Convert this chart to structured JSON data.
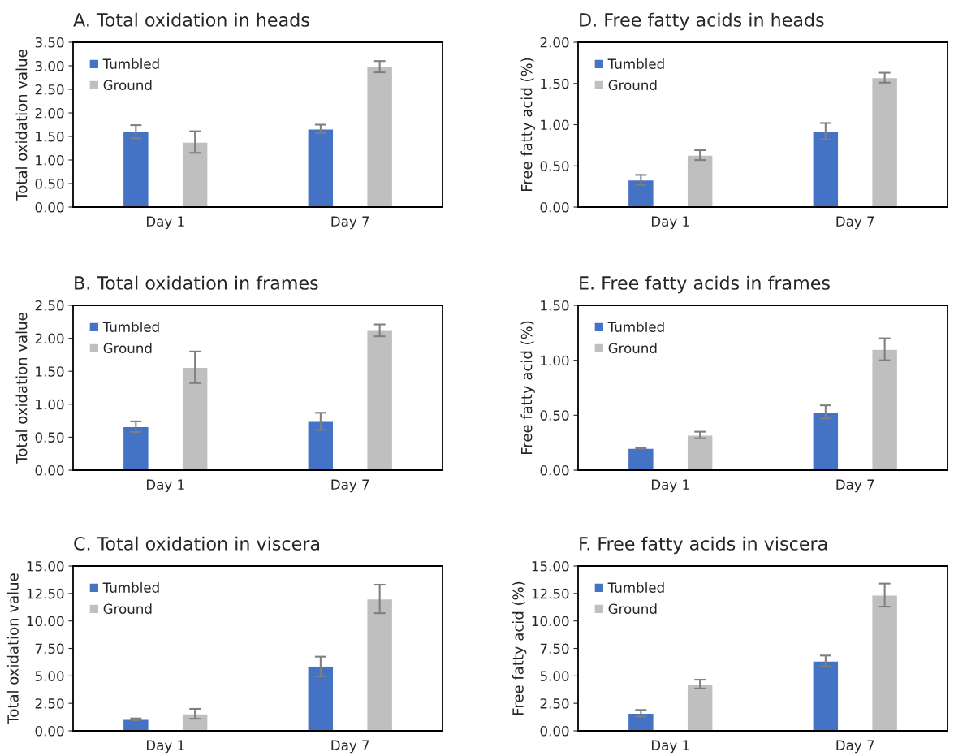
{
  "chart_data": [
    {
      "type": "bar",
      "title": "A. Total oxidation in heads",
      "ylabel": "Total oxidation value",
      "categories": [
        "Day 1",
        "Day 7"
      ],
      "legend": "top left",
      "ylim": [
        0,
        3.5
      ],
      "yticks": [
        {
          "value": 0,
          "label": "0.00"
        },
        {
          "value": 0.5,
          "label": "0.50"
        },
        {
          "value": 1,
          "label": "1.00"
        },
        {
          "value": 1.5,
          "label": "1.50"
        },
        {
          "value": 2,
          "label": "2.00"
        },
        {
          "value": 2.5,
          "label": "2.50"
        },
        {
          "value": 3,
          "label": "3.00"
        },
        {
          "value": 3.5,
          "label": "3.50"
        }
      ],
      "series": [
        {
          "name": "Tumbled",
          "color": "#4472c4",
          "values": [
            1.6,
            1.66
          ],
          "errors": [
            0.14,
            0.09
          ]
        },
        {
          "name": "Ground",
          "color": "#bfbfbf",
          "values": [
            1.38,
            2.98
          ],
          "errors": [
            0.23,
            0.12
          ]
        }
      ]
    },
    {
      "type": "bar",
      "title": "B. Total oxidation in frames",
      "ylabel": "Total oxidation value",
      "categories": [
        "Day 1",
        "Day 7"
      ],
      "legend": "top left",
      "ylim": [
        0,
        2.5
      ],
      "yticks": [
        {
          "value": 0,
          "label": "0.00"
        },
        {
          "value": 0.5,
          "label": "0.50"
        },
        {
          "value": 1,
          "label": "1.00"
        },
        {
          "value": 1.5,
          "label": "1.50"
        },
        {
          "value": 2,
          "label": "2.00"
        },
        {
          "value": 2.5,
          "label": "2.50"
        }
      ],
      "series": [
        {
          "name": "Tumbled",
          "color": "#4472c4",
          "values": [
            0.66,
            0.74
          ],
          "errors": [
            0.08,
            0.13
          ]
        },
        {
          "name": "Ground",
          "color": "#bfbfbf",
          "values": [
            1.56,
            2.12
          ],
          "errors": [
            0.24,
            0.09
          ]
        }
      ]
    },
    {
      "type": "bar",
      "title": "C. Total oxidation in viscera",
      "ylabel": "Total oxidation value",
      "categories": [
        "Day 1",
        "Day 7"
      ],
      "legend": "top left",
      "ylim": [
        0,
        15
      ],
      "yticks": [
        {
          "value": 0,
          "label": "0.00"
        },
        {
          "value": 2.5,
          "label": "2.50"
        },
        {
          "value": 5,
          "label": "5.00"
        },
        {
          "value": 7.5,
          "label": "7.50"
        },
        {
          "value": 10,
          "label": "10.00"
        },
        {
          "value": 12.5,
          "label": "12.50"
        },
        {
          "value": 15,
          "label": "15.00"
        }
      ],
      "series": [
        {
          "name": "Tumbled",
          "color": "#4472c4",
          "values": [
            1.05,
            5.85
          ],
          "errors": [
            0.08,
            0.9
          ]
        },
        {
          "name": "Ground",
          "color": "#bfbfbf",
          "values": [
            1.55,
            12.0
          ],
          "errors": [
            0.45,
            1.3
          ]
        }
      ]
    },
    {
      "type": "bar",
      "title": "D. Free fatty acids in heads",
      "ylabel": "Free fatty acid (%)",
      "categories": [
        "Day 1",
        "Day 7"
      ],
      "legend": "top left",
      "ylim": [
        0,
        2
      ],
      "yticks": [
        {
          "value": 0,
          "label": "0.00"
        },
        {
          "value": 0.5,
          "label": "0.50"
        },
        {
          "value": 1,
          "label": "1.00"
        },
        {
          "value": 1.5,
          "label": "1.50"
        },
        {
          "value": 2,
          "label": "2.00"
        }
      ],
      "series": [
        {
          "name": "Tumbled",
          "color": "#4472c4",
          "values": [
            0.33,
            0.92
          ],
          "errors": [
            0.06,
            0.1
          ]
        },
        {
          "name": "Ground",
          "color": "#bfbfbf",
          "values": [
            0.63,
            1.57
          ],
          "errors": [
            0.06,
            0.06
          ]
        }
      ]
    },
    {
      "type": "bar",
      "title": "E. Free fatty acids in frames",
      "ylabel": "Free fatty acid (%)",
      "categories": [
        "Day 1",
        "Day 7"
      ],
      "legend": "top left",
      "ylim": [
        0,
        1.5
      ],
      "yticks": [
        {
          "value": 0,
          "label": "0.00"
        },
        {
          "value": 0.5,
          "label": "0.50"
        },
        {
          "value": 1,
          "label": "1.00"
        },
        {
          "value": 1.5,
          "label": "1.50"
        }
      ],
      "series": [
        {
          "name": "Tumbled",
          "color": "#4472c4",
          "values": [
            0.2,
            0.53
          ],
          "errors": [
            0.005,
            0.06
          ]
        },
        {
          "name": "Ground",
          "color": "#bfbfbf",
          "values": [
            0.32,
            1.1
          ],
          "errors": [
            0.03,
            0.1
          ]
        }
      ]
    },
    {
      "type": "bar",
      "title": "F. Free fatty acids in viscera",
      "ylabel": "Free fatty acid (%)",
      "categories": [
        "Day 1",
        "Day 7"
      ],
      "legend": "top left",
      "ylim": [
        0,
        15
      ],
      "yticks": [
        {
          "value": 0,
          "label": "0.00"
        },
        {
          "value": 2.5,
          "label": "2.50"
        },
        {
          "value": 5,
          "label": "5.00"
        },
        {
          "value": 7.5,
          "label": "7.50"
        },
        {
          "value": 10,
          "label": "10.00"
        },
        {
          "value": 12.5,
          "label": "12.50"
        },
        {
          "value": 15,
          "label": "15.00"
        }
      ],
      "series": [
        {
          "name": "Tumbled",
          "color": "#4472c4",
          "values": [
            1.6,
            6.35
          ],
          "errors": [
            0.3,
            0.5
          ]
        },
        {
          "name": "Ground",
          "color": "#bfbfbf",
          "values": [
            4.25,
            12.35
          ],
          "errors": [
            0.4,
            1.05
          ]
        }
      ]
    }
  ]
}
